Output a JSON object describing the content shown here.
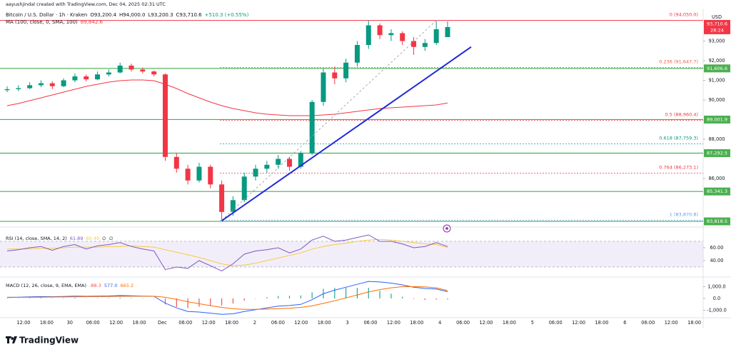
{
  "watermark": "aayushjindal created with TradingView.com, Dec 04, 2025 02:31 UTC",
  "brand": "TradingView",
  "chart_data": {
    "type": "candlestick",
    "title": "Bitcoin / U.S. Dollar · 1h · Kraken",
    "ohlc_legend": [
      "O93,200.4",
      "H94,000.0",
      "L93,200.3",
      "C93,710.6",
      "+510.3 (+0.55%)"
    ],
    "currency": "USD",
    "x_labels": [
      "12:00",
      "18:00",
      "30",
      "06:00",
      "12:00",
      "18:00",
      "Dec",
      "06:00",
      "12:00",
      "18:00",
      "2",
      "06:00",
      "12:00",
      "18:00",
      "3",
      "06:00",
      "12:00",
      "18:00",
      "4",
      "06:00",
      "12:00",
      "18:00",
      "5",
      "06:00",
      "12:00",
      "18:00",
      "6",
      "06:00",
      "12:00",
      "18:00"
    ],
    "ohlc": [
      [
        90500,
        90700,
        90400,
        90550
      ],
      [
        90550,
        90750,
        90450,
        90600
      ],
      [
        90600,
        90900,
        90550,
        90750
      ],
      [
        90750,
        91000,
        90650,
        90850
      ],
      [
        90850,
        90950,
        90550,
        90700
      ],
      [
        90700,
        91100,
        90650,
        91000
      ],
      [
        91000,
        91350,
        90900,
        91200
      ],
      [
        91200,
        91300,
        90950,
        91050
      ],
      [
        91050,
        91450,
        91000,
        91300
      ],
      [
        91300,
        91550,
        91200,
        91400
      ],
      [
        91400,
        91900,
        91350,
        91750
      ],
      [
        91750,
        91850,
        91450,
        91550
      ],
      [
        91550,
        91650,
        91350,
        91450
      ],
      [
        91450,
        91500,
        91200,
        91300
      ],
      [
        91300,
        91350,
        86900,
        87100
      ],
      [
        87100,
        87300,
        86300,
        86500
      ],
      [
        86500,
        86700,
        85700,
        85900
      ],
      [
        85900,
        86800,
        85800,
        86600
      ],
      [
        86600,
        86700,
        85500,
        85700
      ],
      [
        85700,
        85900,
        83870.8,
        84300
      ],
      [
        84300,
        85100,
        84100,
        84900
      ],
      [
        84900,
        86300,
        84800,
        86100
      ],
      [
        86100,
        86700,
        85900,
        86500
      ],
      [
        86500,
        86900,
        86300,
        86700
      ],
      [
        86700,
        87200,
        86500,
        87000
      ],
      [
        87000,
        87100,
        86400,
        86600
      ],
      [
        86600,
        87400,
        86500,
        87300
      ],
      [
        87300,
        90000,
        87200,
        89900
      ],
      [
        89900,
        91600,
        89700,
        91400
      ],
      [
        91400,
        91700,
        90800,
        91100
      ],
      [
        91100,
        92100,
        90900,
        91900
      ],
      [
        91900,
        93000,
        91700,
        92800
      ],
      [
        92800,
        94050,
        92600,
        93800
      ],
      [
        93800,
        93900,
        93100,
        93300
      ],
      [
        93300,
        93600,
        93000,
        93400
      ],
      [
        93400,
        93500,
        92800,
        93000
      ],
      [
        93000,
        93200,
        92300,
        92700
      ],
      [
        92700,
        93100,
        92500,
        92900
      ],
      [
        92900,
        94000,
        92800,
        93600
      ],
      [
        93200.4,
        94000,
        93200.3,
        93710.6
      ]
    ],
    "up_color": "#089981",
    "down_color": "#f23645",
    "ylim": [
      83530,
      94580
    ],
    "yticks": [
      {
        "value": 93000,
        "label": "93,000"
      },
      {
        "value": 92000,
        "label": "92,000"
      },
      {
        "value": 91000,
        "label": "91,000"
      },
      {
        "value": 90000,
        "label": "90,000"
      },
      {
        "value": 88000,
        "label": "88,000"
      },
      {
        "value": 86000,
        "label": "86,000"
      }
    ],
    "last_price": {
      "value": 93710.6,
      "label": "93,710.6",
      "countdown": "28:24",
      "color": "#f23645"
    },
    "ma": {
      "name": "MA (100, close, 0, SMA, 100)",
      "value_label": "89,842.6",
      "color": "#f23645",
      "values": [
        89709,
        89818,
        89964,
        90109,
        90255,
        90400,
        90545,
        90691,
        90800,
        90909,
        90982,
        91018,
        91018,
        90982,
        90800,
        90582,
        90327,
        90109,
        89891,
        89709,
        89564,
        89455,
        89345,
        89273,
        89236,
        89200,
        89200,
        89200,
        89236,
        89273,
        89345,
        89418,
        89491,
        89564,
        89600,
        89636,
        89673,
        89709,
        89745,
        89842.6
      ]
    },
    "levels": {
      "color": "#4caf50",
      "items": [
        {
          "value": 91606.6,
          "label": "91,606.6"
        },
        {
          "value": 89001.9,
          "label": "89,001.9"
        },
        {
          "value": 87292.5,
          "label": "87,292.5"
        },
        {
          "value": 85341.3,
          "label": "85,341.3"
        },
        {
          "value": 83818.5,
          "label": "83,818.5"
        }
      ]
    },
    "fib": [
      {
        "value": 94050,
        "label": "0 (94,050.0)",
        "color": "#f23645"
      },
      {
        "value": 91647.7,
        "label": "0.236 (91,647.7)",
        "color": "#e65f4f"
      },
      {
        "value": 88960.4,
        "label": "0.5 (88,960.4)",
        "color": "#f23645"
      },
      {
        "value": 87759.3,
        "label": "0.618 (87,759.3)",
        "color": "#089981"
      },
      {
        "value": 86273.1,
        "label": "0.764 (86,273.1)",
        "color": "#f23645"
      },
      {
        "value": 83870.8,
        "label": "1 (83,870.8)",
        "color": "#5b9cf6"
      }
    ],
    "trend_line": {
      "color": "#1f2ad6",
      "values": [
        83850,
        92700
      ]
    },
    "rsi": {
      "name": "RSI (14, close, SMA, 14, 2)",
      "legend_values": [
        "61.89",
        "60.49",
        "∅",
        "∅"
      ],
      "ylim": [
        14.4,
        92.2
      ],
      "yticks": [
        {
          "value": 60,
          "label": "60.00"
        },
        {
          "value": 40,
          "label": "40.00"
        }
      ],
      "band": [
        30,
        70
      ],
      "series": [
        {
          "color": "#7e57c2",
          "values": [
            55,
            57,
            60,
            62,
            56,
            62,
            65,
            58,
            63,
            65,
            68,
            62,
            58,
            55,
            26,
            30,
            28,
            40,
            32,
            24,
            35,
            50,
            55,
            57,
            60,
            52,
            58,
            72,
            78,
            70,
            72,
            76,
            80,
            70,
            70,
            66,
            60,
            62,
            68,
            61.89
          ]
        },
        {
          "color": "#f7c948",
          "values": [
            58,
            58,
            58,
            59,
            59,
            60,
            61,
            61,
            61,
            62,
            62,
            63,
            62,
            61,
            57,
            53,
            49,
            45,
            40,
            35,
            32,
            33,
            36,
            40,
            44,
            48,
            52,
            58,
            62,
            65,
            67,
            70,
            72,
            73,
            72,
            70,
            68,
            66,
            65,
            60.49
          ]
        }
      ]
    },
    "macd": {
      "name": "MACD (12, 26, close, 9, EMA, EMA)",
      "legend_values": [
        "-88.3",
        "577.0",
        "665.2"
      ],
      "ylim": [
        -1636,
        1818
      ],
      "yticks": [
        {
          "value": 1000,
          "label": "1,000.0"
        },
        {
          "value": 0,
          "label": "0.0"
        },
        {
          "value": -1000,
          "label": "-1,000.0"
        }
      ],
      "histogram": {
        "up_color": "#26a69a",
        "down_color": "#ef5350",
        "values": [
          20,
          20,
          40,
          50,
          30,
          40,
          60,
          30,
          40,
          40,
          70,
          40,
          10,
          -10,
          -500,
          -720,
          -820,
          -700,
          -640,
          -590,
          -430,
          -180,
          -20,
          100,
          210,
          230,
          260,
          530,
          820,
          900,
          900,
          900,
          900,
          650,
          400,
          150,
          -50,
          -130,
          -100,
          -88.3
        ]
      },
      "series": [
        {
          "color": "#2962ff",
          "values": [
            100,
            110,
            140,
            160,
            150,
            170,
            200,
            180,
            200,
            210,
            250,
            230,
            200,
            180,
            -400,
            -800,
            -1100,
            -1150,
            -1250,
            -1350,
            -1300,
            -1100,
            -950,
            -800,
            -650,
            -600,
            -500,
            -100,
            400,
            700,
            950,
            1200,
            1450,
            1400,
            1300,
            1150,
            950,
            850,
            800,
            577
          ]
        },
        {
          "color": "#ff6d00",
          "values": [
            80,
            90,
            100,
            110,
            120,
            130,
            140,
            150,
            160,
            170,
            180,
            190,
            190,
            190,
            100,
            -80,
            -280,
            -450,
            -610,
            -760,
            -870,
            -920,
            -930,
            -900,
            -860,
            -830,
            -760,
            -630,
            -420,
            -200,
            50,
            300,
            550,
            750,
            900,
            1000,
            1000,
            980,
            900,
            665.2
          ]
        }
      ]
    }
  }
}
